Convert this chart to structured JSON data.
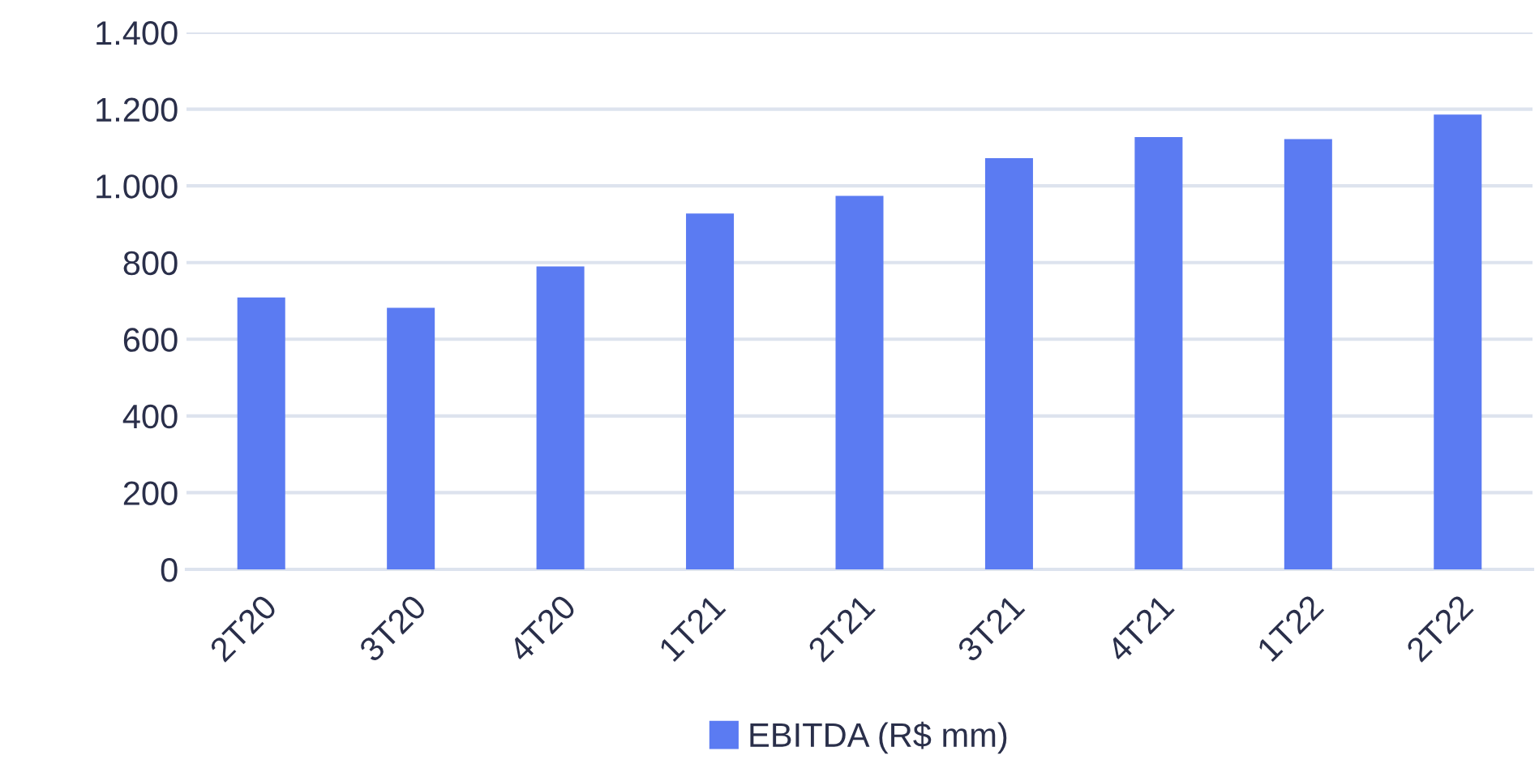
{
  "chart_data": {
    "type": "bar",
    "categories": [
      "2T20",
      "3T20",
      "4T20",
      "1T21",
      "2T21",
      "3T21",
      "4T21",
      "1T22",
      "2T22"
    ],
    "series": [
      {
        "name": "EBITDA (R$ mm)",
        "color": "#5b7bf2",
        "values": [
          709,
          682,
          790,
          928,
          974,
          1072,
          1127,
          1122,
          1186
        ]
      }
    ],
    "ylim": [
      0,
      1400
    ],
    "yticks": [
      {
        "value": 0,
        "label": "0"
      },
      {
        "value": 200,
        "label": "200"
      },
      {
        "value": 400,
        "label": "400"
      },
      {
        "value": 600,
        "label": "600"
      },
      {
        "value": 800,
        "label": "800"
      },
      {
        "value": 1000,
        "label": "1.000"
      },
      {
        "value": 1200,
        "label": "1.200"
      },
      {
        "value": 1400,
        "label": "1.400"
      }
    ],
    "grid": "y",
    "legend": "bottom"
  }
}
